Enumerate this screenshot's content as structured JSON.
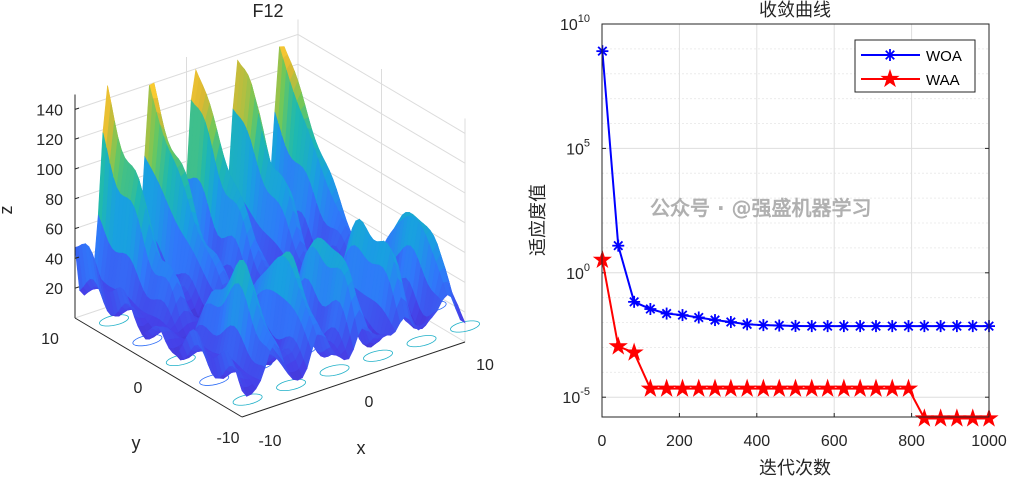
{
  "chart_data": [
    {
      "type": "surface",
      "title": "F12",
      "xlabel": "x",
      "ylabel": "y",
      "zlabel": "z",
      "xlim": [
        -10,
        10
      ],
      "ylim": [
        -10,
        10
      ],
      "zlim": [
        0,
        150
      ],
      "xticks": [
        "-10",
        "0",
        "10"
      ],
      "yticks": [
        "-10",
        "0",
        "10"
      ],
      "zticks": [
        "20",
        "40",
        "60",
        "80",
        "100",
        "120",
        "140"
      ],
      "colormap": "parula",
      "contour_on_floor": true,
      "grid": true
    },
    {
      "type": "line",
      "title": "收敛曲线",
      "xlabel": "迭代次数",
      "ylabel": "适应度值",
      "yscale": "log",
      "xlim": [
        0,
        1000
      ],
      "ylim": [
        1.6e-06,
        10000000000.0
      ],
      "xticks": [
        "0",
        "200",
        "400",
        "600",
        "800",
        "1000"
      ],
      "yticks": [
        {
          "base": "10",
          "exp": "10"
        },
        {
          "base": "10",
          "exp": "5"
        },
        {
          "base": "10",
          "exp": "0"
        },
        {
          "base": "10",
          "exp": "-5"
        }
      ],
      "grid": true,
      "legend_position": "top-right",
      "x": [
        1,
        42,
        83,
        125,
        167,
        208,
        250,
        292,
        333,
        375,
        417,
        458,
        500,
        542,
        583,
        625,
        667,
        708,
        750,
        792,
        833,
        875,
        917,
        958,
        1000
      ],
      "series": [
        {
          "name": "WOA",
          "color": "#0000ff",
          "marker": "asterisk",
          "values": [
            810000000.0,
            12.3,
            0.068,
            0.035,
            0.023,
            0.02,
            0.016,
            0.0126,
            0.0105,
            0.0085,
            0.0079,
            0.0076,
            0.0073,
            0.0072,
            0.0072,
            0.0072,
            0.0072,
            0.0072,
            0.0072,
            0.0072,
            0.0072,
            0.0072,
            0.0072,
            0.0072,
            0.0072
          ]
        },
        {
          "name": "WAA",
          "color": "#ff0000",
          "marker": "pentagram",
          "values": [
            3.3,
            0.0011,
            0.00062,
            2.2e-05,
            2.2e-05,
            2.2e-05,
            2.2e-05,
            2.2e-05,
            2.2e-05,
            2.2e-05,
            2.2e-05,
            2.2e-05,
            2.2e-05,
            2.2e-05,
            2.2e-05,
            2.2e-05,
            2.2e-05,
            2.2e-05,
            2.2e-05,
            2.2e-05,
            1.4e-06,
            1.4e-06,
            1.4e-06,
            1.4e-06,
            1.4e-06
          ]
        }
      ]
    }
  ],
  "watermark": "公众号 · @强盛机器学习"
}
